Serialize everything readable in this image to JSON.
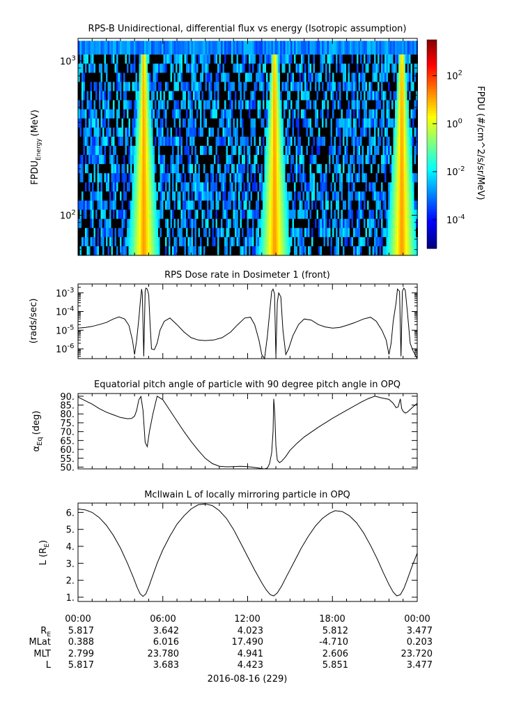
{
  "chart_data": [
    {
      "type": "heatmap",
      "title": "RPS-B  Unidirectional, differential flux vs energy (Isotropic assumption)",
      "ylabel": "FPDU",
      "ylabel_sub": "Energy",
      "ylabel_unit": "(MeV)",
      "yscale": "log",
      "ylim": [
        55,
        1400
      ],
      "yticks": [
        {
          "value": 100,
          "label": "10",
          "exp": "2"
        },
        {
          "value": 1000,
          "label": "10",
          "exp": "3"
        }
      ],
      "colorbar": {
        "label": "FPDU (#/cm^2/s/sr/MeV)",
        "scale": "log",
        "range_log10": [
          -5.2,
          3.5
        ],
        "ticks": [
          {
            "value_log10": 2,
            "label": "10",
            "exp": "2"
          },
          {
            "value_log10": 0,
            "label": "10",
            "exp": "0"
          },
          {
            "value_log10": -2,
            "label": "10",
            "exp": "-2"
          },
          {
            "value_log10": -4,
            "label": "10",
            "exp": "-4"
          }
        ]
      },
      "high_flux_bands_hours": [
        4.6,
        13.85,
        22.85
      ],
      "energy_low_MeV": 55,
      "energy_high_MeV": 1350
    },
    {
      "type": "line",
      "title": "RPS  Dose rate in Dosimeter 1 (front)",
      "ylabel": "(rads/sec)",
      "yscale": "log",
      "ylim": [
        3e-07,
        0.003
      ],
      "yticks": [
        {
          "value": 0.001,
          "label": "10",
          "exp": "-3"
        },
        {
          "value": 0.0001,
          "label": "10",
          "exp": "-4"
        },
        {
          "value": 1e-05,
          "label": "10",
          "exp": "-5"
        },
        {
          "value": 1e-06,
          "label": "10",
          "exp": "-6"
        }
      ],
      "series": [
        {
          "name": "Dose rate",
          "x": [
            0,
            0.5,
            1.0,
            1.5,
            2.0,
            2.5,
            2.9,
            3.3,
            3.6,
            3.85,
            4.0,
            4.15,
            4.3,
            4.4,
            4.5,
            4.55,
            4.65,
            4.75,
            4.8,
            4.9,
            5.0,
            5.1,
            5.2,
            5.4,
            5.6,
            5.8,
            6.1,
            6.5,
            7.0,
            7.5,
            8.0,
            8.5,
            9.0,
            9.6,
            10.2,
            10.8,
            11.3,
            11.8,
            12.2,
            12.5,
            12.8,
            13.0,
            13.2,
            13.4,
            13.6,
            13.7,
            13.8,
            13.9,
            14.0,
            14.1,
            14.2,
            14.35,
            14.5,
            14.7,
            14.9,
            15.2,
            15.6,
            16.0,
            16.5,
            17.0,
            17.5,
            18.0,
            18.5,
            19.0,
            19.6,
            20.2,
            20.7,
            21.1,
            21.5,
            21.8,
            22.0,
            22.15,
            22.3,
            22.5,
            22.6,
            22.75,
            22.85,
            22.95,
            23.05,
            23.15,
            23.3,
            23.5,
            23.7,
            24.0
          ],
          "y": [
            1.3e-05,
            1.4e-05,
            1.6e-05,
            2e-05,
            2.6e-05,
            4e-05,
            5.2e-05,
            4e-05,
            1.8e-05,
            3e-06,
            5e-07,
            3e-06,
            4e-05,
            0.0003,
            0.0016,
            0.0009,
            4e-07,
            0.0012,
            0.0018,
            0.0016,
            0.0008,
            2e-05,
            1e-06,
            9e-07,
            2e-06,
            1e-05,
            3e-05,
            4.5e-05,
            2e-05,
            8e-06,
            4e-06,
            3e-06,
            2.8e-06,
            3e-06,
            4e-06,
            8e-06,
            2e-05,
            4.5e-05,
            5e-05,
            2e-05,
            3e-06,
            5e-07,
            3e-07,
            5e-06,
            0.0002,
            0.0012,
            0.0016,
            0.0009,
            4e-07,
            0.0003,
            0.001,
            0.0006,
            1e-05,
            5e-07,
            1e-06,
            5e-06,
            2e-05,
            4e-05,
            3.5e-05,
            2e-05,
            1.5e-05,
            1.3e-05,
            1.4e-05,
            1.8e-05,
            2.6e-05,
            4e-05,
            5e-05,
            3e-05,
            1e-05,
            3e-06,
            5e-07,
            2e-06,
            3e-05,
            0.0003,
            0.0016,
            0.0012,
            4e-07,
            0.0012,
            0.0018,
            0.0014,
            0.0001,
            2e-06,
            8e-07,
            3e-07
          ]
        }
      ]
    },
    {
      "type": "line",
      "title": "Equatorial pitch angle of particle with 90 degree pitch angle in OPQ",
      "ylabel": "α",
      "ylabel_sub": "Eq",
      "ylabel_unit": "(deg)",
      "ylim": [
        49,
        91.5
      ],
      "yticks": [
        {
          "value": 90,
          "label": "90."
        },
        {
          "value": 85,
          "label": "85."
        },
        {
          "value": 80,
          "label": "80."
        },
        {
          "value": 75,
          "label": "75."
        },
        {
          "value": 70,
          "label": "70."
        },
        {
          "value": 65,
          "label": "65."
        },
        {
          "value": 60,
          "label": "60."
        },
        {
          "value": 55,
          "label": "55."
        },
        {
          "value": 50,
          "label": "50."
        }
      ],
      "series": [
        {
          "name": "alpha_eq",
          "x": [
            0,
            0.5,
            1.0,
            1.5,
            2.0,
            2.5,
            3.0,
            3.5,
            3.8,
            4.0,
            4.15,
            4.3,
            4.45,
            4.6,
            4.75,
            4.9,
            5.05,
            5.3,
            5.6,
            6.0,
            6.5,
            7.0,
            7.5,
            8.0,
            8.5,
            9.0,
            9.5,
            10.0,
            10.5,
            11.0,
            11.5,
            12.0,
            12.5,
            13.0,
            13.2,
            13.4,
            13.55,
            13.7,
            13.8,
            13.85,
            13.92,
            14.0,
            14.1,
            14.25,
            14.4,
            14.7,
            15.0,
            15.5,
            16.0,
            17.0,
            18.0,
            19.0,
            20.0,
            20.5,
            21.0,
            21.5,
            22.0,
            22.3,
            22.5,
            22.65,
            22.8,
            22.9,
            23.0,
            23.15,
            23.3,
            23.5,
            23.7,
            24.0
          ],
          "y": [
            89.5,
            87.5,
            85.5,
            83.0,
            81.0,
            79.5,
            78.0,
            77.3,
            77.5,
            78.8,
            82.0,
            88.0,
            89.8,
            82.0,
            64.0,
            61.5,
            70.0,
            80.0,
            90.0,
            88.0,
            82.0,
            76.0,
            70.0,
            64.5,
            59.5,
            55.0,
            52.0,
            50.5,
            50.2,
            50.3,
            50.5,
            50.3,
            49.8,
            49.2,
            48.8,
            49.5,
            52.0,
            58.0,
            70.0,
            88.5,
            80.0,
            62.0,
            54.0,
            52.5,
            53.2,
            56.0,
            59.5,
            63.5,
            67.0,
            72.5,
            77.5,
            82.0,
            86.5,
            88.5,
            90.0,
            89.0,
            88.2,
            86.0,
            83.5,
            84.0,
            88.5,
            83.0,
            81.5,
            80.5,
            81.0,
            82.5,
            84.0,
            86.0
          ]
        }
      ]
    },
    {
      "type": "line",
      "title": "McIlwain L of locally mirroring particle in OPQ",
      "ylabel": "L (R",
      "ylabel_sub": "E",
      "ylabel_unit": ")",
      "ylim": [
        0.75,
        6.55
      ],
      "yticks": [
        {
          "value": 6,
          "label": "6."
        },
        {
          "value": 5,
          "label": "5."
        },
        {
          "value": 4,
          "label": "4."
        },
        {
          "value": 3,
          "label": "3."
        },
        {
          "value": 2,
          "label": "2."
        },
        {
          "value": 1,
          "label": "1."
        }
      ],
      "series": [
        {
          "name": "L",
          "x": [
            0,
            0.5,
            1.0,
            1.5,
            2.0,
            2.5,
            3.0,
            3.5,
            3.9,
            4.2,
            4.4,
            4.6,
            4.8,
            5.0,
            5.3,
            5.6,
            6.0,
            6.5,
            7.0,
            7.5,
            8.0,
            8.5,
            9.0,
            9.5,
            10.0,
            10.5,
            11.0,
            11.5,
            12.0,
            12.5,
            13.0,
            13.3,
            13.6,
            13.85,
            14.1,
            14.4,
            14.8,
            15.3,
            15.8,
            16.3,
            16.8,
            17.3,
            17.8,
            18.2,
            18.7,
            19.2,
            19.7,
            20.2,
            20.7,
            21.2,
            21.6,
            22.0,
            22.3,
            22.55,
            22.8,
            23.05,
            23.3,
            23.6,
            24.0
          ],
          "y": [
            6.2,
            6.15,
            6.0,
            5.7,
            5.25,
            4.65,
            3.9,
            3.0,
            2.2,
            1.55,
            1.2,
            1.05,
            1.2,
            1.6,
            2.3,
            3.0,
            3.8,
            4.6,
            5.3,
            5.8,
            6.2,
            6.45,
            6.5,
            6.4,
            6.1,
            5.65,
            5.0,
            4.2,
            3.4,
            2.6,
            1.85,
            1.45,
            1.15,
            1.08,
            1.25,
            1.65,
            2.3,
            3.1,
            3.9,
            4.6,
            5.2,
            5.65,
            5.95,
            6.1,
            6.05,
            5.8,
            5.4,
            4.8,
            4.05,
            3.2,
            2.45,
            1.75,
            1.3,
            1.08,
            1.15,
            1.5,
            2.05,
            2.75,
            3.6
          ]
        }
      ]
    }
  ],
  "x_axis": {
    "ticks": [
      "00:00",
      "06:00",
      "12:00",
      "18:00",
      "00:00"
    ],
    "rows": [
      {
        "label": "R",
        "label_sub": "E",
        "values": [
          "5.817",
          "3.642",
          "4.023",
          "5.812",
          "3.477"
        ]
      },
      {
        "label": "MLat",
        "values": [
          "0.388",
          "6.016",
          "17.490",
          "-4.710",
          "0.203"
        ]
      },
      {
        "label": "MLT",
        "values": [
          "2.799",
          "23.780",
          "4.941",
          "2.606",
          "23.720"
        ]
      },
      {
        "label": "L",
        "values": [
          "5.817",
          "3.683",
          "4.423",
          "5.851",
          "3.477"
        ]
      }
    ],
    "date": "2016-08-16 (229)"
  }
}
